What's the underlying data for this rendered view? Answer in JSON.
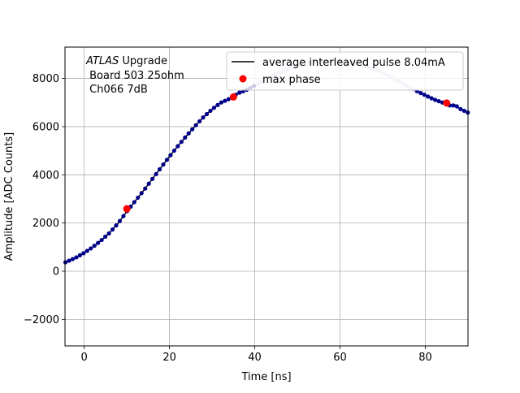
{
  "chart_data": {
    "type": "scatter",
    "title": "",
    "xlabel": "Time [ns]",
    "ylabel": "Amplitude [ADC Counts]",
    "xlim": [
      -4.5,
      90
    ],
    "ylim": [
      -3100,
      9300
    ],
    "xticks": [
      0,
      20,
      40,
      60,
      80
    ],
    "yticks": [
      -2000,
      0,
      2000,
      4000,
      6000,
      8000
    ],
    "grid": true,
    "legend_position": "top-right",
    "annotation": {
      "italic": "ATLAS",
      "rest": " Upgrade",
      "line2": " Board 503 25ohm",
      "line3": " Ch066 7dB"
    },
    "series": [
      {
        "name": "average interleaved pulse 8.04mA",
        "style": "line",
        "color": "#000000",
        "x": [
          -4.5,
          -2,
          0,
          2,
          4,
          6,
          8,
          10,
          12,
          14,
          16,
          18,
          20,
          22,
          24,
          26,
          28,
          30,
          32,
          34,
          35,
          36,
          38,
          40,
          44,
          48,
          52,
          56,
          60,
          64,
          68,
          72,
          76,
          80,
          82,
          84,
          85,
          86,
          87,
          88,
          90
        ],
        "y": [
          360,
          560,
          760,
          1000,
          1280,
          1600,
          2000,
          2480,
          2920,
          3360,
          3830,
          4300,
          4760,
          5200,
          5620,
          6020,
          6400,
          6720,
          6990,
          7150,
          7250,
          7380,
          7520,
          7700,
          8100,
          8420,
          8640,
          8720,
          8710,
          8600,
          8400,
          8060,
          7650,
          7300,
          7130,
          7000,
          6950,
          6850,
          6900,
          6750,
          6580
        ]
      },
      {
        "name": "max phase",
        "style": "markers",
        "color": "#ff0000",
        "x": [
          10,
          35,
          85
        ],
        "y": [
          2590,
          7230,
          6980
        ]
      }
    ]
  },
  "colors": {
    "dense_points": "#00008b",
    "faded_points": "#c8c8ec",
    "grid": "#b0b0b0"
  }
}
